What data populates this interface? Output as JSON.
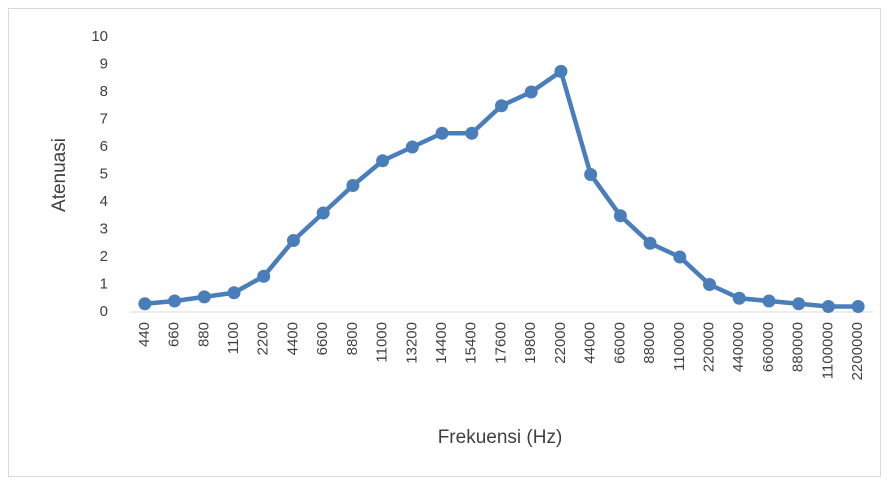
{
  "chart_data": {
    "type": "line",
    "categories": [
      "440",
      "660",
      "880",
      "1100",
      "2200",
      "4400",
      "6600",
      "8800",
      "11000",
      "13200",
      "14400",
      "15400",
      "17600",
      "19800",
      "22000",
      "44000",
      "66000",
      "88000",
      "110000",
      "220000",
      "440000",
      "660000",
      "880000",
      "1100000",
      "2200000"
    ],
    "values": [
      0.3,
      0.4,
      0.55,
      0.7,
      1.3,
      2.6,
      3.6,
      4.6,
      5.5,
      6.0,
      6.5,
      6.5,
      7.5,
      8.0,
      8.75,
      5.0,
      3.5,
      2.5,
      2.0,
      1.0,
      0.5,
      0.4,
      0.3,
      0.2,
      0.2
    ],
    "color": "#4a7ebb",
    "xlabel": "Frekuensi (Hz)",
    "ylabel": "Atenuasi",
    "ylim": [
      0,
      10
    ],
    "yticks": [
      0,
      1,
      2,
      3,
      4,
      5,
      6,
      7,
      8,
      9,
      10
    ],
    "grid": false
  }
}
